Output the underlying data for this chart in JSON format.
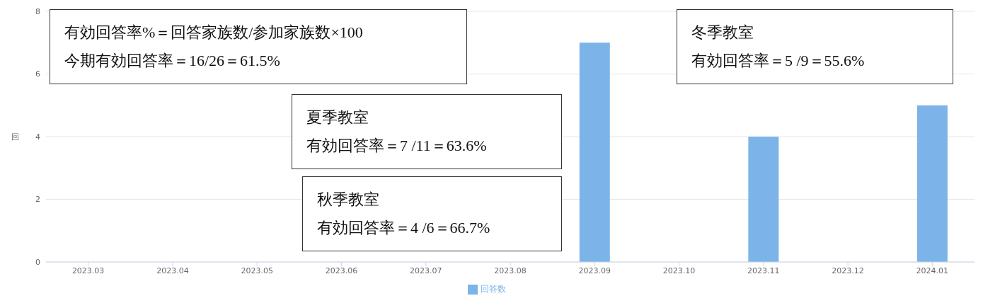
{
  "chart_data": {
    "type": "bar",
    "ylabel": "回",
    "categories": [
      "2023.03",
      "2023.04",
      "2023.05",
      "2023.06",
      "2023.07",
      "2023.08",
      "2023.09",
      "2023.10",
      "2023.11",
      "2023.12",
      "2024.01"
    ],
    "series": [
      {
        "name": "回答数",
        "color": "#7cb4ea",
        "values": [
          0,
          0,
          0,
          0,
          0,
          0,
          7,
          0,
          4,
          0,
          5
        ]
      }
    ],
    "ylim": [
      0,
      8
    ],
    "yticks": [
      0,
      2,
      4,
      6,
      8
    ],
    "grid": "y",
    "legend": "bottom",
    "annotations": [
      "有効回答率%＝回答家族数/参加家族数×100",
      "今期有効回答率＝16/26＝61.5%",
      "冬季教室",
      "有効回答率＝5 /9＝55.6%",
      "夏季教室",
      "有効回答率＝7 /11＝63.6%",
      "秋季教室",
      "有効回答率＝4 /6＝66.7%"
    ]
  }
}
